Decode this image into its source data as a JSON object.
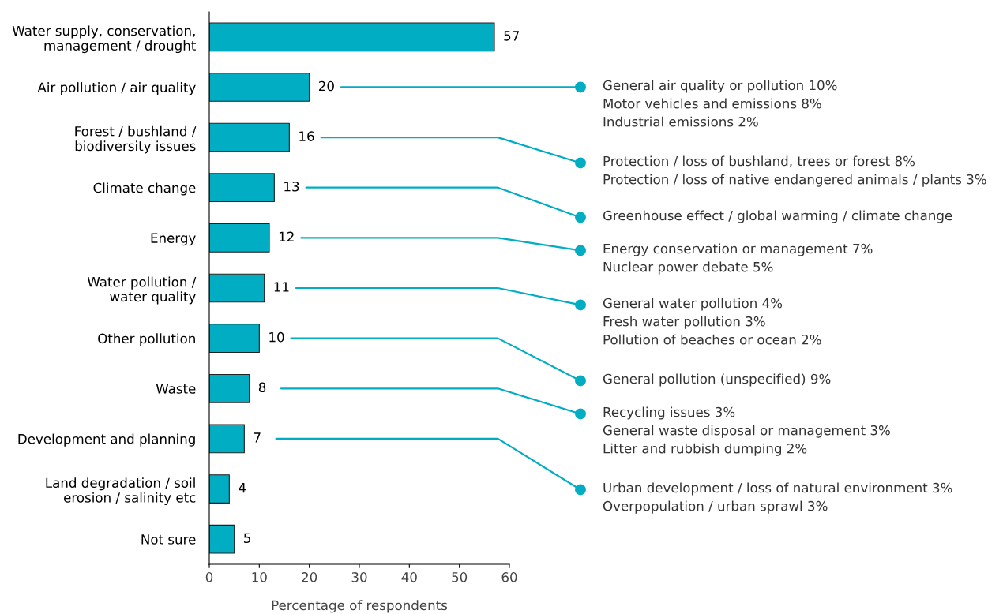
{
  "chart_data": {
    "type": "bar",
    "orientation": "horizontal",
    "xlabel": "Percentage of respondents",
    "categories": [
      "Water supply, conservation,\nmanagement / drought",
      "Air pollution / air quality",
      "Forest / bushland /\nbiodiversity issues",
      "Climate change",
      "Energy",
      "Water pollution /\nwater quality",
      "Other pollution",
      "Waste",
      "Development and planning",
      "Land degradation / soil\nerosion / salinity etc",
      "Not sure"
    ],
    "values": [
      57,
      20,
      16,
      13,
      12,
      11,
      10,
      8,
      7,
      4,
      5
    ],
    "color": "#00adc3",
    "data_labels": true,
    "xlim": [
      0,
      60
    ],
    "xticks": [
      0,
      10,
      20,
      30,
      40,
      50,
      60
    ],
    "grid": false,
    "legend": false,
    "annotations": [
      "General air quality or pollution 10%\nMotor vehicles and emissions 8%\nIndustrial emissions 2%",
      "Protection / loss of bushland, trees or forest 8%\nProtection / loss of native endangered animals / plants 3%",
      "Greenhouse effect / global warming / climate change",
      "Energy conservation or management 7%\nNuclear power debate 5%",
      "General water pollution 4%\nFresh water pollution 3%\nPollution of beaches or ocean 2%",
      "General pollution (unspecified) 9%",
      "Recycling issues 3%\nGeneral waste disposal or management 3%\nLitter and rubbish dumping 2%",
      "Urban development / loss of natural environment 3%\nOverpopulation / urban sprawl 3%"
    ]
  }
}
